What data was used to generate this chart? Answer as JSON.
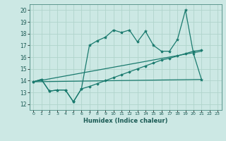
{
  "title": "",
  "xlabel": "Humidex (Indice chaleur)",
  "background_color": "#cce8e4",
  "grid_color": "#b0d4cc",
  "line_color": "#1a7a6e",
  "xlim": [
    -0.5,
    23.5
  ],
  "ylim": [
    11.5,
    20.5
  ],
  "yticks": [
    12,
    13,
    14,
    15,
    16,
    17,
    18,
    19,
    20
  ],
  "xticks": [
    0,
    1,
    2,
    3,
    4,
    5,
    6,
    7,
    8,
    9,
    10,
    11,
    12,
    13,
    14,
    15,
    16,
    17,
    18,
    19,
    20,
    21,
    22,
    23
  ],
  "line1_x": [
    0,
    1,
    2,
    3,
    4,
    5,
    6,
    7,
    8,
    9,
    10,
    11,
    12,
    13,
    14,
    15,
    16,
    17,
    18,
    19,
    20,
    21
  ],
  "line1_y": [
    13.9,
    14.1,
    13.1,
    13.2,
    13.2,
    12.2,
    13.3,
    17.0,
    17.4,
    17.7,
    18.3,
    18.1,
    18.3,
    17.3,
    18.2,
    17.0,
    16.5,
    16.5,
    17.5,
    20.0,
    16.3,
    14.1
  ],
  "line2_x": [
    0,
    1,
    2,
    3,
    4,
    5,
    6,
    7,
    8,
    9,
    10,
    11,
    12,
    13,
    14,
    15,
    16,
    17,
    18,
    19,
    20,
    21
  ],
  "line2_y": [
    13.9,
    14.1,
    13.1,
    13.2,
    13.2,
    12.2,
    13.3,
    13.5,
    13.75,
    14.0,
    14.25,
    14.5,
    14.75,
    15.0,
    15.25,
    15.5,
    15.75,
    15.9,
    16.1,
    16.3,
    16.5,
    16.6
  ],
  "line3_x": [
    0,
    21
  ],
  "line3_y": [
    13.9,
    16.5
  ],
  "line4_x": [
    0,
    21
  ],
  "line4_y": [
    13.9,
    14.1
  ]
}
